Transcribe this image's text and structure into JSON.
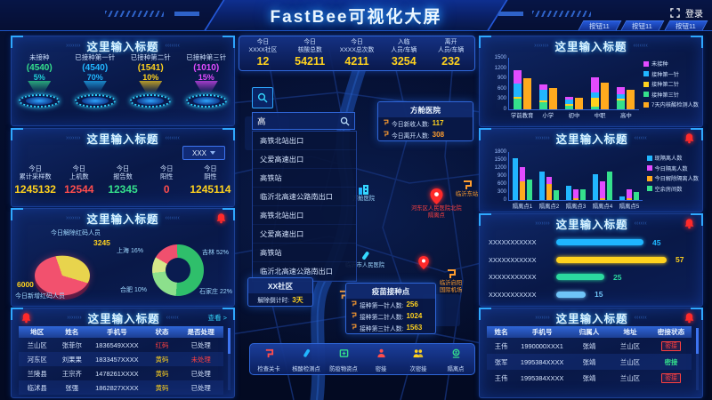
{
  "header": {
    "title": "FastBee可视化大屏",
    "login": "登录",
    "buttons": [
      "按钮11",
      "按钮11",
      "按钮11"
    ]
  },
  "left_panels": {
    "gauge": {
      "title": "这里输入标题",
      "items": [
        {
          "label": "未接种",
          "value": "(4540)",
          "percent": "5%",
          "value_color": "#35e08c",
          "pct_color": "#21d0d8"
        },
        {
          "label": "已接种第一针",
          "value": "(4540)",
          "percent": "70%",
          "value_color": "#21b6ff",
          "pct_color": "#21b6ff"
        },
        {
          "label": "已接种第二针",
          "value": "(1541)",
          "percent": "10%",
          "value_color": "#ffd21e",
          "pct_color": "#ffd21e"
        },
        {
          "label": "已接种第三针",
          "value": "(1010)",
          "percent": "15%",
          "value_color": "#e24bff",
          "pct_color": "#e24bff"
        }
      ]
    },
    "samples": {
      "title": "这里输入标题",
      "dropdown": "XXX",
      "stats": [
        {
          "label": "今日\n累计采样数",
          "value": "1245132",
          "color": "#ffd21e"
        },
        {
          "label": "今日\n上机数",
          "value": "12544",
          "color": "#ff4d4d"
        },
        {
          "label": "今日\n报告数",
          "value": "12345",
          "color": "#35e08c"
        },
        {
          "label": "今日\n阳性",
          "value": "0",
          "color": "#ff4d4d"
        },
        {
          "label": "今日\n阴性",
          "value": "1245114",
          "color": "#ffd21e"
        }
      ]
    },
    "redcode": {
      "title": "这里输入标题",
      "released_label": "今日解除红码人员",
      "released_value": "3245",
      "added_value": "6000",
      "added_label": "今日新增红码人员",
      "donut_labels": [
        "上海 16%",
        "合肥 10%",
        "吉林 52%",
        "石家庄 22%"
      ]
    },
    "table": {
      "title": "这里输入标题",
      "more": "查看 >",
      "headers": [
        "地区",
        "姓名",
        "手机号",
        "状态",
        "是否处理"
      ],
      "rows": [
        [
          "兰山区",
          "张菲尔",
          "1836549XXXX",
          "红码",
          "已处理"
        ],
        [
          "河东区",
          "刘果果",
          "1833457XXXX",
          "黄码",
          "未处理"
        ],
        [
          "兰陵县",
          "王宗齐",
          "1478261XXXX",
          "黄码",
          "已处理"
        ],
        [
          "临沭县",
          "张强",
          "1862827XXXX",
          "黄码",
          "已处理"
        ]
      ]
    }
  },
  "center": {
    "stats": [
      {
        "label": "今日\nXXXX社区",
        "value": "12"
      },
      {
        "label": "今日\n核酸总数",
        "value": "54211"
      },
      {
        "label": "今日\nXXXX总次数",
        "value": "4211"
      },
      {
        "label": "入临\n人员/车辆",
        "value": "3254"
      },
      {
        "label": "离开\n人员/车辆",
        "value": "232"
      }
    ],
    "search": {
      "value": "高",
      "results": [
        "高铁北站出口",
        "父爱高速出口",
        "高铁站",
        "临沂北高速公路南出口",
        "高铁北站出口",
        "父爱高速出口",
        "高铁站",
        "临沂北高速公路南出口"
      ]
    },
    "hospital_tip": {
      "title": "方舱医院",
      "rows": [
        {
          "label": "今日新收人数:",
          "value": "117",
          "color": "#ffd21e"
        },
        {
          "label": "今日离开人数:",
          "value": "308",
          "color": "#ff9d2e"
        }
      ]
    },
    "community_tip": {
      "title": "XX社区",
      "label": "解除倒计时:",
      "value": "3天"
    },
    "vaccine_tip": {
      "title": "疫苗接种点",
      "rows": [
        {
          "label": "接种第一针人数:",
          "value": "256",
          "color": "#ffd21e"
        },
        {
          "label": "接种第二针人数:",
          "value": "1024",
          "color": "#ffd21e"
        },
        {
          "label": "接种第三针人数:",
          "value": "1563",
          "color": "#ffd21e"
        }
      ]
    },
    "map_labels": {
      "fangcang": "方舱医院",
      "hospital": "临沂市人民医院",
      "hedong1": "河东区人民医院北院",
      "hedong2": "隔离点",
      "station_east": "临沂东站",
      "airport1": "临沂启阳",
      "airport2": "国际机场"
    },
    "legend": [
      {
        "label": "检查关卡",
        "icon": "checkpoint-icon",
        "color": "#ff4d4d"
      },
      {
        "label": "核酸检测点",
        "icon": "test-tube-icon",
        "color": "#21b6ff"
      },
      {
        "label": "防疫物资点",
        "icon": "supplies-icon",
        "color": "#35e08c"
      },
      {
        "label": "密接",
        "icon": "close-contact-icon",
        "color": "#ff4d4d"
      },
      {
        "label": "次密接",
        "icon": "sub-contact-icon",
        "color": "#ffd21e"
      },
      {
        "label": "隔离点",
        "icon": "quarantine-icon",
        "color": "#35e08c"
      }
    ]
  },
  "right_panels": {
    "edu": {
      "title": "这里输入标题"
    },
    "quarantine": {
      "title": "这里输入标题"
    },
    "hbar": {
      "title": "这里输入标题"
    },
    "contacts": {
      "title": "这里输入标题",
      "headers": [
        "姓名",
        "手机号",
        "归属人",
        "地址",
        "密接状态"
      ],
      "rows": [
        {
          "cells": [
            "王伟",
            "1990000XXX1",
            "张靖",
            "兰山区"
          ],
          "status": "密接",
          "status_style": "red"
        },
        {
          "cells": [
            "张军",
            "1995384XXXX",
            "张靖",
            "兰山区"
          ],
          "status": "密接",
          "status_style": "green"
        },
        {
          "cells": [
            "王伟",
            "1995384XXXX",
            "张靖",
            "兰山区"
          ],
          "status": "密接",
          "status_style": "red"
        }
      ]
    }
  },
  "chart_data": [
    {
      "type": "bar",
      "panel": "right-top",
      "title": "这里输入标题",
      "categories": [
        "学前教育",
        "小学",
        "初中",
        "中职",
        "高中"
      ],
      "ylim": [
        0,
        1500
      ],
      "yticks": [
        0,
        300,
        600,
        900,
        1200,
        1500
      ],
      "series": [
        {
          "name": "接种第三针",
          "color": "#35e08c",
          "stack": "a",
          "values": [
            300,
            200,
            100,
            90,
            250
          ]
        },
        {
          "name": "接种第二针",
          "color": "#ffd21e",
          "stack": "a",
          "values": [
            60,
            60,
            60,
            260,
            60
          ]
        },
        {
          "name": "接种第一针",
          "color": "#21b6ff",
          "stack": "a",
          "values": [
            380,
            300,
            130,
            150,
            140
          ]
        },
        {
          "name": "未接种",
          "color": "#e24bff",
          "stack": "a",
          "values": [
            390,
            160,
            90,
            450,
            200
          ]
        },
        {
          "name": "7天内核酸检测人数",
          "color": "#ffaa1e",
          "stack": null,
          "values": [
            900,
            620,
            330,
            780,
            580
          ]
        }
      ],
      "legend": [
        {
          "label": "未接种",
          "color": "#e24bff"
        },
        {
          "label": "接种第一针",
          "color": "#21b6ff"
        },
        {
          "label": "接种第二针",
          "color": "#ffd21e"
        },
        {
          "label": "接种第三针",
          "color": "#35e08c"
        },
        {
          "label": "7天内核酸检测人数",
          "color": "#ffaa1e"
        }
      ]
    },
    {
      "type": "bar",
      "panel": "right-second",
      "title": "这里输入标题",
      "categories": [
        "隔离点1",
        "隔离点2",
        "隔离点3",
        "隔离点4",
        "隔离点5"
      ],
      "ylim": [
        0,
        1800
      ],
      "yticks": [
        0,
        300,
        600,
        900,
        1200,
        1500,
        1800
      ],
      "series": [
        {
          "name": "现隔离人数",
          "color": "#21b6ff",
          "stack": null,
          "values": [
            1580,
            1060,
            520,
            950,
            120
          ]
        },
        {
          "name": "今日解除隔离人数",
          "color": "#ffaa1e",
          "stack": "b",
          "values": [
            700,
            600,
            60,
            80,
            50
          ]
        },
        {
          "name": "今日隔离人数",
          "color": "#e24bff",
          "stack": "b",
          "values": [
            530,
            250,
            320,
            620,
            330
          ]
        },
        {
          "name": "空余房间数",
          "color": "#35e08c",
          "stack": null,
          "values": [
            750,
            350,
            400,
            1050,
            300
          ]
        }
      ],
      "legend": [
        {
          "label": "现隔离人数",
          "color": "#21b6ff"
        },
        {
          "label": "今日隔离人数",
          "color": "#e24bff"
        },
        {
          "label": "今日解除隔离人数",
          "color": "#ffaa1e"
        },
        {
          "label": "空余房间数",
          "color": "#35e08c"
        }
      ]
    },
    {
      "type": "bar",
      "orientation": "horizontal",
      "panel": "right-third",
      "title": "这里输入标题",
      "categories": [
        "XXXXXXXXXXX",
        "XXXXXXXXXXX",
        "XXXXXXXXXXX",
        "XXXXXXXXXXX"
      ],
      "values": [
        45,
        57,
        25,
        15
      ],
      "colors": [
        "#1fb6ff",
        "#ffd21e",
        "#2bd99f",
        "#6fc4f7"
      ],
      "xlim": [
        0,
        60
      ]
    },
    {
      "type": "pie",
      "panel": "left-redcode-pie",
      "labels": [
        "今日解除红码人员",
        "今日新增红码人员"
      ],
      "values": [
        3245,
        6000
      ],
      "colors": [
        "#e8d44d",
        "#f2516e"
      ]
    },
    {
      "type": "pie",
      "donut": true,
      "panel": "left-redcode-donut",
      "labels": [
        "上海",
        "吉林",
        "石家庄",
        "合肥"
      ],
      "values": [
        16,
        52,
        22,
        10
      ],
      "colors": [
        "#f0506e",
        "#2fbf6b",
        "#8ce08c",
        "#d6e88a"
      ],
      "unit": "%"
    }
  ]
}
